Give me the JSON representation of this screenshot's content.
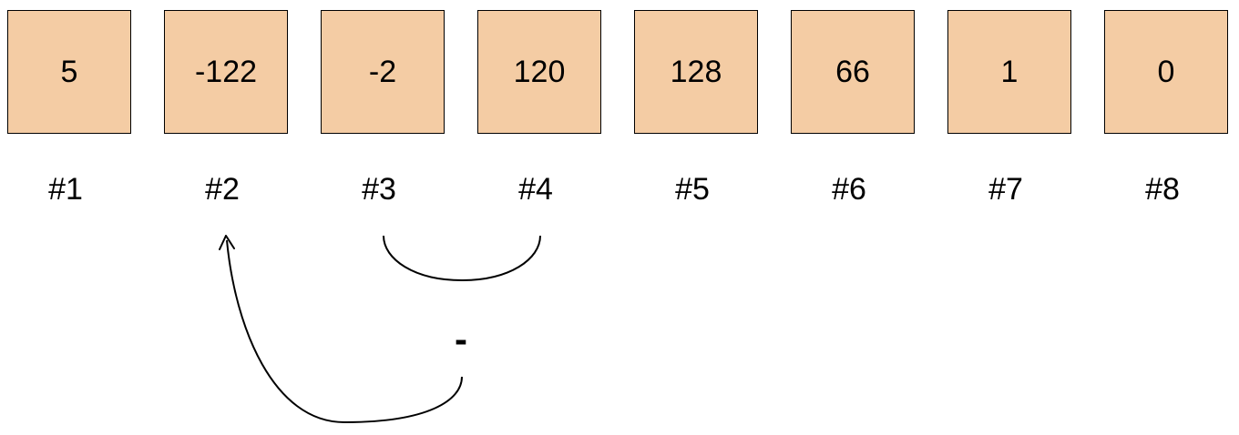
{
  "cell_fill": "#f4cca4",
  "cells": [
    {
      "value": "5",
      "label": "#1"
    },
    {
      "value": "-122",
      "label": "#2"
    },
    {
      "value": "-2",
      "label": "#3"
    },
    {
      "value": "120",
      "label": "#4"
    },
    {
      "value": "128",
      "label": "#5"
    },
    {
      "value": "66",
      "label": "#6"
    },
    {
      "value": "1",
      "label": "#7"
    },
    {
      "value": "0",
      "label": "#8"
    }
  ],
  "operation": {
    "symbol": "-",
    "operands": [
      "#3",
      "#4"
    ],
    "result_target": "#2"
  }
}
